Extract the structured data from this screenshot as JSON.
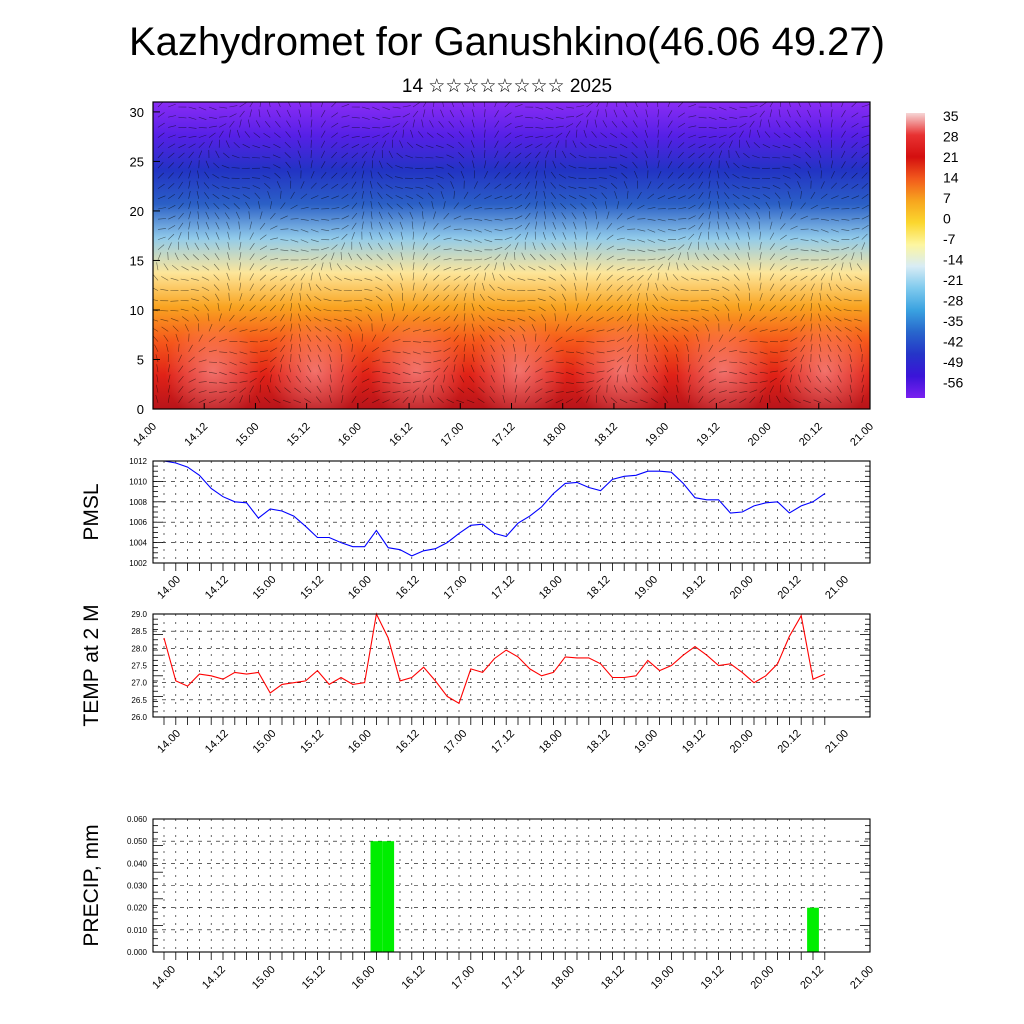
{
  "title": "Kazhydromet for Ganushkino(46.06 49.27)",
  "subtitle": "14 ☆☆☆☆☆☆☆☆ 2025",
  "time_labels": [
    "14.00",
    "14.12",
    "15.00",
    "15.12",
    "16.00",
    "16.12",
    "17.00",
    "17.12",
    "18.00",
    "18.12",
    "19.00",
    "19.12",
    "20.00",
    "20.12",
    "21.00"
  ],
  "chart_data": [
    {
      "type": "heatmap",
      "name": "temperature-wind-section",
      "y_ticks": [
        "0",
        "5",
        "10",
        "15",
        "20",
        "25",
        "30"
      ],
      "ylim": [
        0,
        31
      ],
      "colorbar": {
        "labels": [
          "35",
          "28",
          "21",
          "14",
          "7",
          "0",
          "-7",
          "-14",
          "-21",
          "-28",
          "-35",
          "-42",
          "-49",
          "-56"
        ],
        "colors": [
          "#f6d6d6",
          "#e83232",
          "#d40f0f",
          "#f25a1c",
          "#f7a51e",
          "#fbd72e",
          "#fdf6a0",
          "#d8ecf5",
          "#7fcaee",
          "#3aa2e0",
          "#2866cc",
          "#2535c8",
          "#3a14d8",
          "#7a20f0"
        ]
      },
      "band_colors": [
        "#b8141a",
        "#e02217",
        "#f6591b",
        "#f9a421",
        "#fde69a",
        "#92cbea",
        "#2b60c6",
        "#2233c4",
        "#5520e6",
        "#8a2cf5"
      ]
    },
    {
      "type": "line",
      "ylabel": "PMSL",
      "ylim": [
        1002,
        1012
      ],
      "y_ticks": [
        "1002",
        "1004",
        "1006",
        "1008",
        "1010",
        "1012"
      ],
      "color": "#0000ff",
      "values": [
        1012.0,
        1011.8,
        1011.4,
        1010.6,
        1009.3,
        1008.5,
        1008.0,
        1007.9,
        1006.4,
        1007.3,
        1007.1,
        1006.6,
        1005.6,
        1004.5,
        1004.5,
        1004.0,
        1003.6,
        1003.6,
        1005.2,
        1003.5,
        1003.3,
        1002.7,
        1003.2,
        1003.4,
        1004.0,
        1004.9,
        1005.7,
        1005.8,
        1004.9,
        1004.6,
        1005.9,
        1006.6,
        1007.5,
        1008.8,
        1009.8,
        1009.9,
        1009.4,
        1009.1,
        1010.2,
        1010.5,
        1010.6,
        1011.0,
        1011.0,
        1010.9,
        1009.8,
        1008.4,
        1008.2,
        1008.2,
        1006.9,
        1007.0,
        1007.6,
        1007.9,
        1008.0,
        1006.9,
        1007.6,
        1008.0,
        1008.8
      ]
    },
    {
      "type": "line",
      "ylabel": "TEMP at 2 M",
      "ylim": [
        26.0,
        29.0
      ],
      "y_ticks": [
        "26.0",
        "26.5",
        "27.0",
        "27.5",
        "28.0",
        "28.5",
        "29.0"
      ],
      "color": "#ff0000",
      "values": [
        28.3,
        27.05,
        26.9,
        27.25,
        27.2,
        27.1,
        27.3,
        27.25,
        27.3,
        26.7,
        26.95,
        27.0,
        27.05,
        27.35,
        26.95,
        27.15,
        26.95,
        27.0,
        29.0,
        28.3,
        27.05,
        27.15,
        27.45,
        27.05,
        26.6,
        26.4,
        27.4,
        27.3,
        27.7,
        27.95,
        27.75,
        27.4,
        27.2,
        27.3,
        27.75,
        27.72,
        27.72,
        27.55,
        27.15,
        27.15,
        27.2,
        27.65,
        27.35,
        27.5,
        27.8,
        28.05,
        27.8,
        27.5,
        27.55,
        27.3,
        27.0,
        27.2,
        27.55,
        28.35,
        28.95,
        27.1,
        27.25
      ]
    },
    {
      "type": "bar",
      "ylabel": "PRECIP, mm",
      "ylim": [
        0.0,
        0.06
      ],
      "y_ticks": [
        "0.000",
        "0.010",
        "0.020",
        "0.030",
        "0.040",
        "0.050",
        "0.060"
      ],
      "color": "#00ee00",
      "values": [
        0,
        0,
        0,
        0,
        0,
        0,
        0,
        0,
        0,
        0,
        0,
        0,
        0,
        0,
        0,
        0,
        0,
        0,
        0.05,
        0.05,
        0,
        0,
        0,
        0,
        0,
        0,
        0,
        0,
        0,
        0,
        0,
        0,
        0,
        0,
        0,
        0,
        0,
        0,
        0,
        0,
        0,
        0,
        0,
        0,
        0,
        0,
        0,
        0,
        0,
        0,
        0,
        0,
        0,
        0,
        0,
        0.02,
        0
      ]
    }
  ]
}
